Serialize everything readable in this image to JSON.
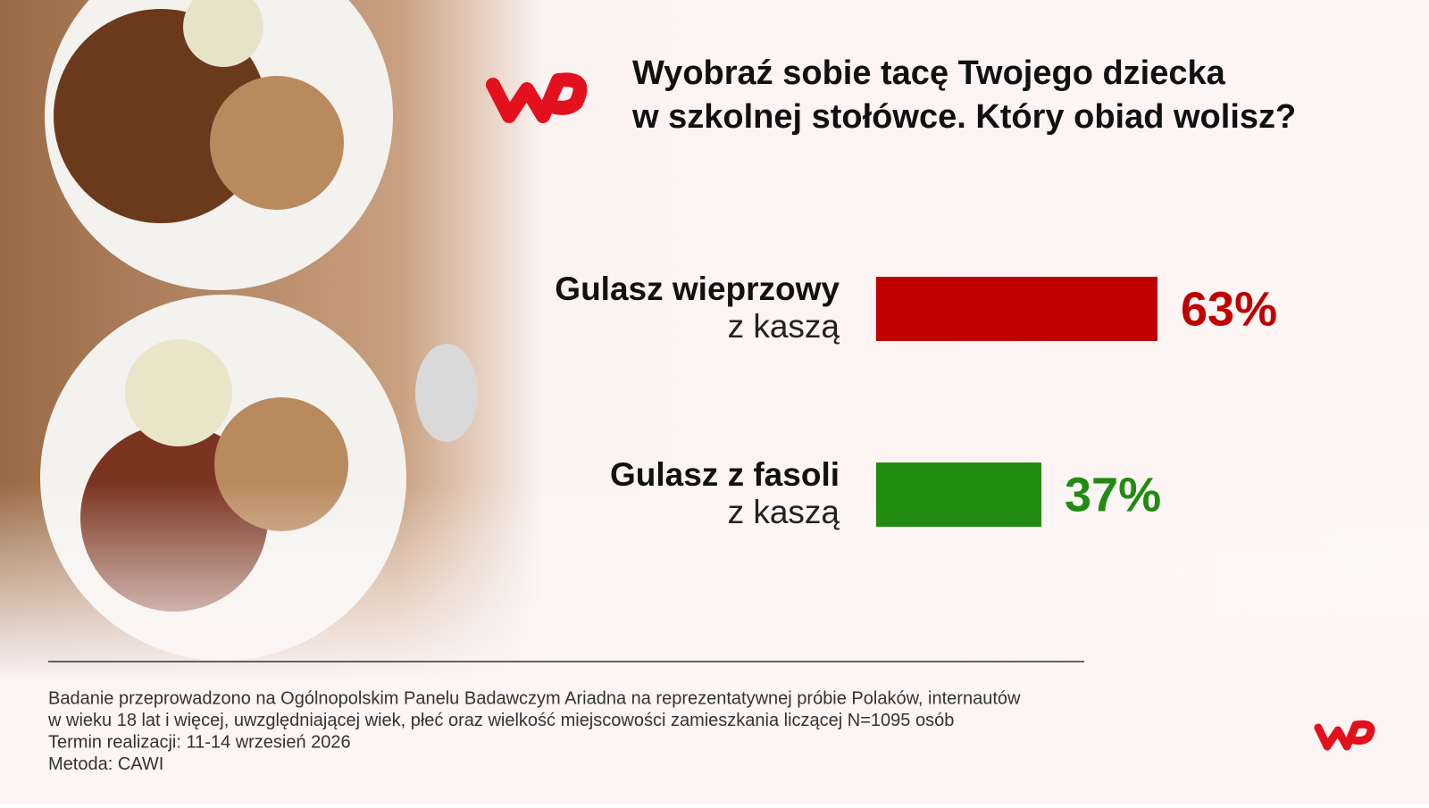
{
  "chart_data": {
    "type": "bar",
    "title": [
      "Wyobraź sobie tacę Twojego dziecka",
      "w szkolnej stołówce. Który obiad wolisz?"
    ],
    "categories": [
      [
        "Gulasz wieprzowy",
        "z kaszą"
      ],
      [
        "Gulasz z fasoli",
        "z kaszą"
      ]
    ],
    "values": [
      63,
      37
    ],
    "value_labels": [
      "63%",
      "37%"
    ],
    "colors": [
      "#c00000",
      "#228b12"
    ],
    "notes": [
      "Badanie przeprowadzono na Ogólnopolskim Panelu Badawczym Ariadna na reprezentatywnej próbie Polaków, internautów",
      "w wieku 18 lat i więcej, uwzględniającej wiek, płeć oraz wielkość miejscowości zamieszkania liczącej N=1095 osób",
      "Termin realizacji: 11-14 wrzesień 2026",
      "Metoda: CAWI"
    ]
  }
}
